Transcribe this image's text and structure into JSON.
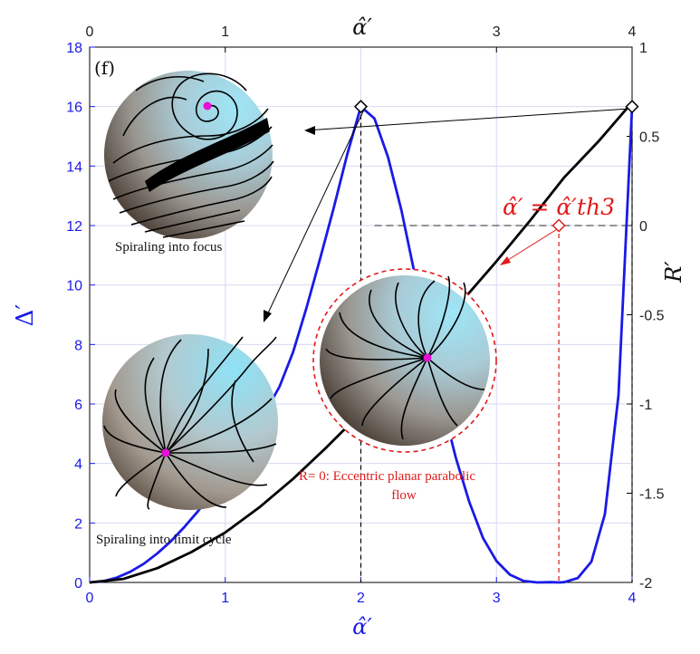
{
  "chart_data": {
    "type": "line",
    "panel_label": "(f)",
    "xlabel_bottom": "α̂′",
    "xlabel_top": "α̂′",
    "ylabel_left": "Δ′",
    "ylabel_right": "R′",
    "xlim": [
      0,
      4
    ],
    "ylim_left": [
      0,
      18
    ],
    "ylim_right": [
      -2,
      1
    ],
    "x_ticks_bottom": [
      "0",
      "1",
      "2",
      "3",
      "4"
    ],
    "x_ticks_top": [
      "0",
      "1",
      "",
      "3",
      "4"
    ],
    "y_ticks_left": [
      "0",
      "2",
      "4",
      "6",
      "8",
      "10",
      "12",
      "14",
      "16",
      "18"
    ],
    "y_ticks_right": [
      "-2",
      "-1.5",
      "-1",
      "-0.5",
      "0",
      "0.5",
      "1"
    ],
    "grid": true,
    "series": [
      {
        "axis": "left",
        "color": "#1a1ae6",
        "x": [
          0,
          0.1,
          0.2,
          0.3,
          0.4,
          0.5,
          0.6,
          0.7,
          0.8,
          0.9,
          1.0,
          1.1,
          1.2,
          1.3,
          1.4,
          1.5,
          1.6,
          1.7,
          1.8,
          1.9,
          2.0,
          2.1,
          2.2,
          2.3,
          2.4,
          2.5,
          2.6,
          2.7,
          2.8,
          2.9,
          3.0,
          3.1,
          3.2,
          3.3,
          3.4,
          3.464,
          3.5,
          3.6,
          3.7,
          3.8,
          3.9,
          4.0
        ],
        "y": [
          0,
          0.04,
          0.16,
          0.36,
          0.63,
          0.98,
          1.39,
          1.87,
          2.4,
          2.99,
          3.63,
          4.32,
          5.03,
          5.77,
          6.58,
          7.74,
          9.25,
          10.9,
          12.6,
          14.4,
          16.0,
          15.6,
          14.3,
          12.5,
          10.3,
          8.1,
          6.0,
          4.2,
          2.7,
          1.5,
          0.72,
          0.26,
          0.05,
          0.0,
          0.01,
          0.0,
          0.01,
          0.15,
          0.7,
          2.3,
          6.3,
          16.0
        ]
      },
      {
        "axis": "right",
        "color": "#000000",
        "x": [
          0,
          0.25,
          0.5,
          0.75,
          1.0,
          1.25,
          1.5,
          1.75,
          2.0,
          2.25,
          2.5,
          2.75,
          3.0,
          3.25,
          3.5,
          3.75,
          4.0
        ],
        "y": [
          -2.0,
          -1.98,
          -1.92,
          -1.83,
          -1.72,
          -1.58,
          -1.42,
          -1.24,
          -1.05,
          -0.85,
          -0.64,
          -0.42,
          -0.2,
          0.03,
          0.27,
          0.47,
          0.69
        ]
      }
    ],
    "markers": [
      {
        "axis": "left",
        "x": 2.0,
        "y": 16.0,
        "color": "#000000"
      },
      {
        "axis": "left",
        "x": 4.0,
        "y": 16.0,
        "color": "#000000"
      },
      {
        "axis": "right",
        "x": 3.46,
        "y": 0.0,
        "color": "#e01b1b"
      }
    ],
    "reference_lines": [
      {
        "orientation": "vertical",
        "x": 2.0,
        "color": "#000000",
        "style": "dashed"
      },
      {
        "orientation": "vertical",
        "x": 4.0,
        "color": "#000000",
        "style": "dashed"
      },
      {
        "orientation": "vertical",
        "x": 3.46,
        "color": "#e01b1b",
        "style": "dashed"
      },
      {
        "orientation": "horizontal",
        "axis": "right",
        "y": 0.0,
        "color": "#555555",
        "style": "dashed"
      }
    ],
    "annotations": {
      "threshold_label": "α̂′ = α̂′th3",
      "inset_focus": "Spiraling into focus",
      "inset_limit_cycle": "Spiraling into limit cycle",
      "inset_parabolic_line1": "R= 0: Eccentric planar parabolic",
      "inset_parabolic_line2": "flow"
    }
  },
  "colors": {
    "blue_axis": "#1a1ae6",
    "black_curve": "#000000",
    "red_annotation": "#e01b1b",
    "sphere_light": "#8fdcf0",
    "sphere_dark": "#5a4a3c",
    "dot": "#e60fd6"
  }
}
